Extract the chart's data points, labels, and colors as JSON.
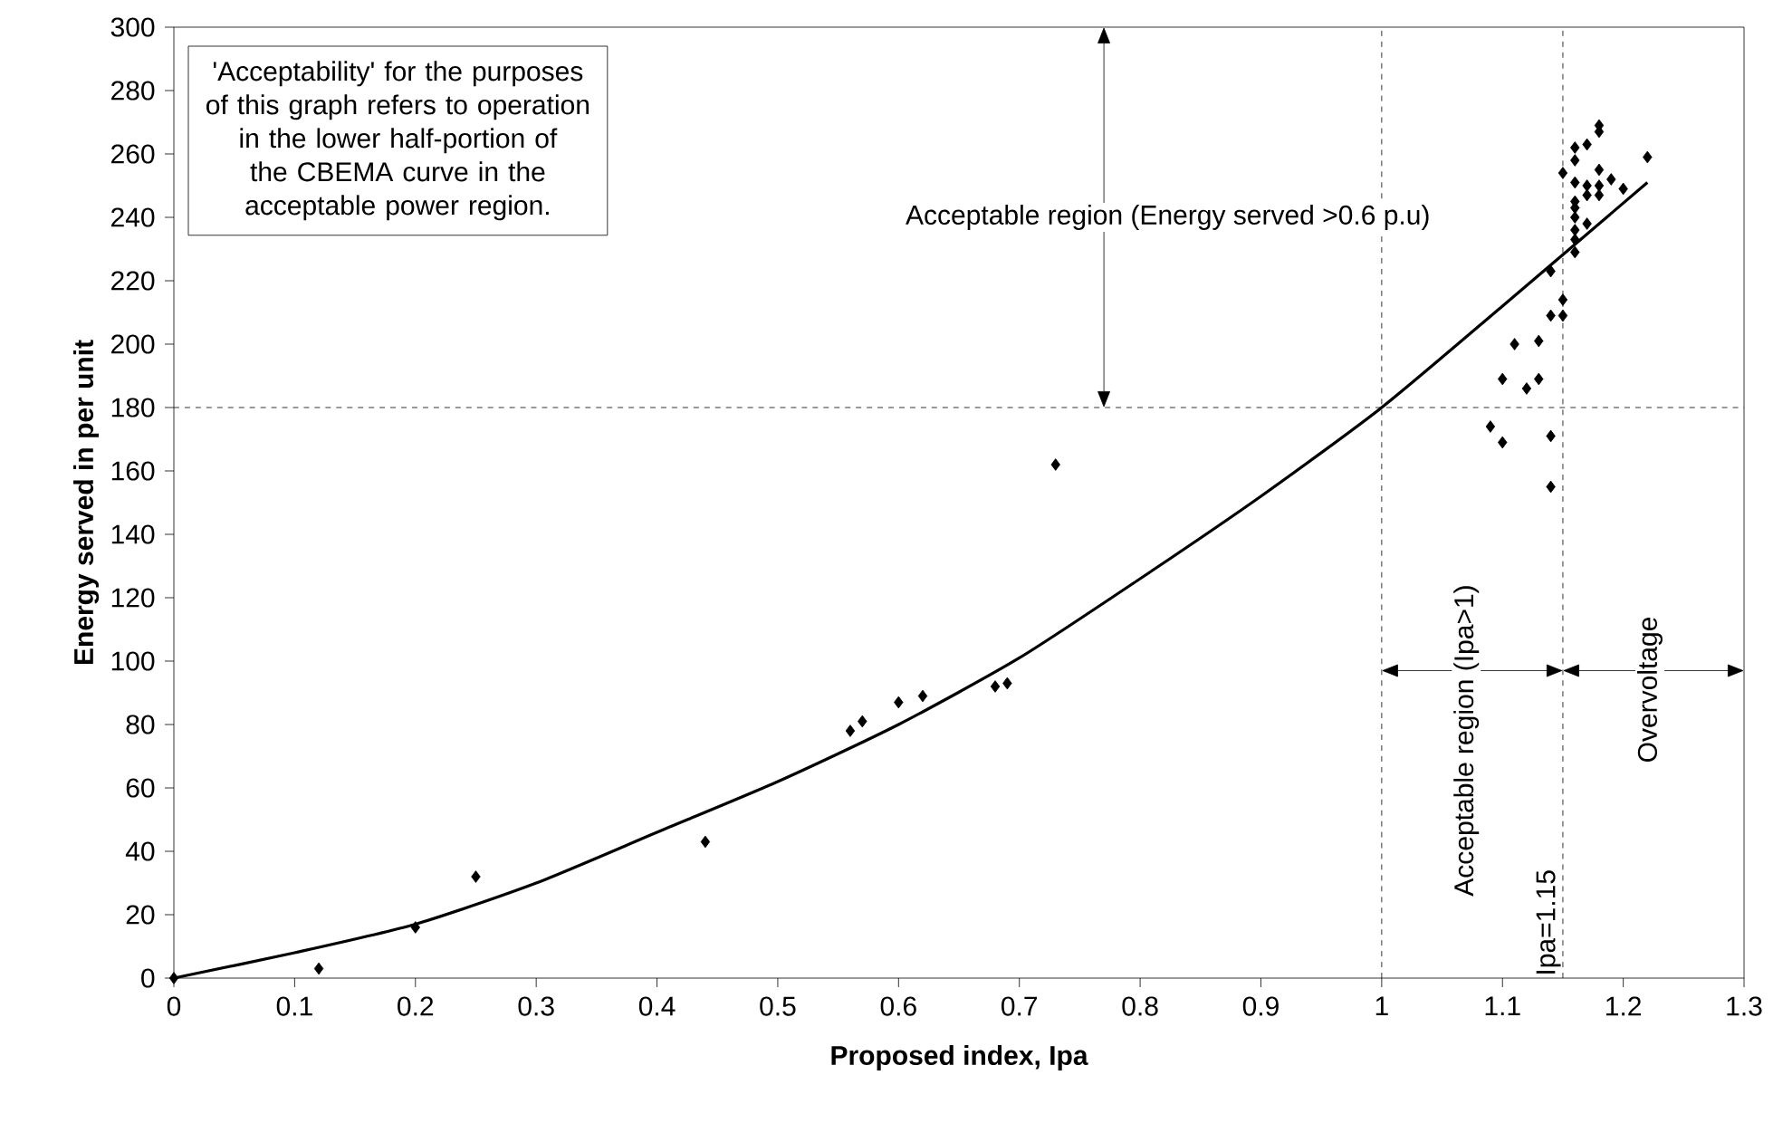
{
  "chart_data": {
    "type": "scatter",
    "xlabel": "Proposed index, Ipa",
    "ylabel": "Energy served in per unit",
    "xlim": [
      0,
      1.3
    ],
    "xticks": [
      0,
      0.1,
      0.2,
      0.3,
      0.4,
      0.5,
      0.6,
      0.7,
      0.8,
      0.9,
      1,
      1.1,
      1.2,
      1.3
    ],
    "ylim": [
      0,
      300
    ],
    "yticks": [
      0,
      20,
      40,
      60,
      80,
      100,
      120,
      140,
      160,
      180,
      200,
      220,
      240,
      260,
      280,
      300
    ],
    "series": [
      {
        "color": "#000000",
        "marker": "diamond",
        "x": [
          0,
          0.12,
          0.2,
          0.25,
          0.44,
          0.56,
          0.57,
          0.6,
          0.62,
          0.68,
          0.69,
          0.73,
          1.09,
          1.1,
          1.1,
          1.11,
          1.12,
          1.13,
          1.13,
          1.14,
          1.14,
          1.14,
          1.15,
          1.15,
          1.14,
          1.15,
          1.16,
          1.16,
          1.16,
          1.16,
          1.16,
          1.16,
          1.16,
          1.16,
          1.16,
          1.17,
          1.17,
          1.17,
          1.17,
          1.18,
          1.18,
          1.18,
          1.18,
          1.18,
          1.19,
          1.2,
          1.22
        ],
        "values": [
          0,
          3,
          16,
          32,
          43,
          78,
          81,
          87,
          89,
          92,
          93,
          162,
          174,
          169,
          189,
          200,
          186,
          189,
          201,
          155,
          171,
          209,
          209,
          214,
          223,
          254,
          229,
          233,
          236,
          240,
          243,
          251,
          258,
          262,
          245,
          238,
          247,
          263,
          250,
          247,
          255,
          267,
          269,
          250,
          252,
          249,
          259
        ]
      },
      {
        "type": "line",
        "color": "#000000",
        "marker": "none",
        "x": [
          0,
          0.1,
          0.2,
          0.3,
          0.4,
          0.5,
          0.6,
          0.7,
          0.8,
          0.9,
          1.0,
          1.1,
          1.22
        ],
        "values": [
          0,
          8,
          17,
          30,
          46,
          62,
          80,
          101,
          126,
          152,
          180,
          212,
          251
        ]
      }
    ],
    "ref_lines": [
      {
        "axis": "x",
        "value": 1,
        "color": "#000000",
        "line_style": "dashed"
      },
      {
        "axis": "x",
        "value": 1.15,
        "label": "Ipa=1.15",
        "color": "#000000",
        "line_style": "dashed"
      },
      {
        "axis": "y",
        "value": 180,
        "color": "#000000",
        "line_style": "dashed"
      }
    ],
    "annotations": [
      "'Acceptability' for the purposes of this graph refers to operation in the lower half-portion of the CBEMA curve in the acceptable power region.",
      "Acceptable region (Energy served >0.6 p.u)",
      "Acceptable region (Ipa>1)",
      "Overvoltage"
    ]
  }
}
